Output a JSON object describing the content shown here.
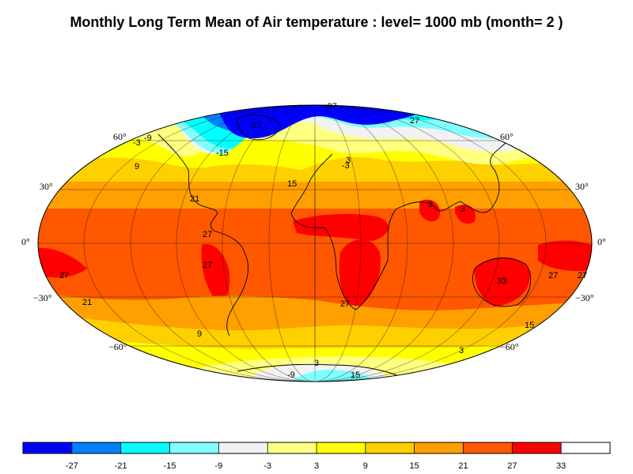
{
  "title": "Monthly Long Term Mean of Air temperature : level= 1000 mb (month= 2 )",
  "map": {
    "projection": "mollweide",
    "latitude_labels": [
      "60°",
      "30°",
      "0°",
      "−30°",
      "−60°"
    ],
    "contour_labels": [
      "-27",
      "-9",
      "-3",
      "9",
      "-15",
      "27",
      "-3",
      "3",
      "15",
      "21",
      "27",
      "27",
      "27",
      "21",
      "9",
      "3",
      "3",
      "27",
      "33",
      "27",
      "15",
      "3",
      "-9",
      "3",
      "15",
      "27",
      "-27"
    ]
  },
  "colorbar": {
    "colors": [
      "#0000ff",
      "#0080ff",
      "#00ffff",
      "#80ffff",
      "#f2f2f2",
      "#ffff80",
      "#ffff00",
      "#ffd000",
      "#ffa000",
      "#ff5800",
      "#ff0000",
      "#ffffff"
    ],
    "ticks": [
      "-27",
      "-21",
      "-15",
      "-9",
      "-3",
      "3",
      "9",
      "15",
      "21",
      "27",
      "33"
    ]
  }
}
